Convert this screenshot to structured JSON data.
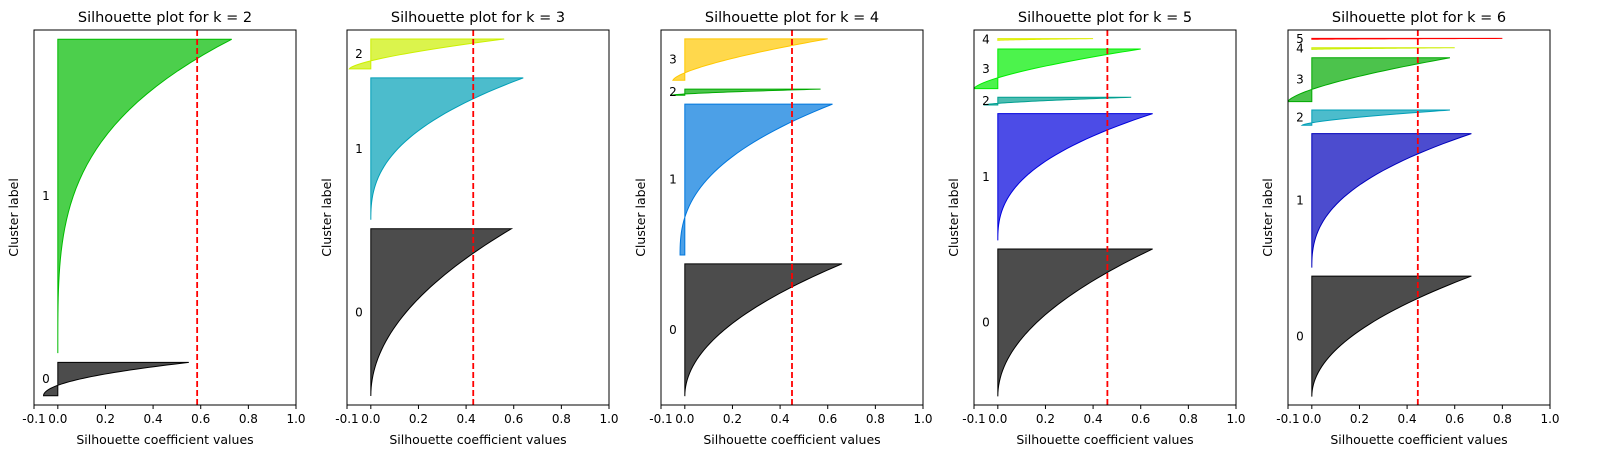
{
  "chart_data": [
    {
      "type": "silhouette",
      "title": "Silhouette plot for k = 2",
      "xlabel": "Silhouette coefficient values",
      "ylabel": "Cluster label",
      "xlim": [
        -0.1,
        1.0
      ],
      "xticks": [
        "-0.1",
        "0.0",
        "0.2",
        "0.4",
        "0.6",
        "0.8",
        "1.0"
      ],
      "mean_silhouette": 0.585,
      "clusters": [
        {
          "label": "0",
          "color": "#000000",
          "size": 36,
          "min": -0.06,
          "max": 0.55,
          "shape": 2.0
        },
        {
          "label": "1",
          "color": "#00bb00",
          "size": 339,
          "min": 0.0,
          "max": 0.73,
          "shape": 3.5
        }
      ]
    },
    {
      "type": "silhouette",
      "title": "Silhouette plot for k = 3",
      "xlabel": "Silhouette coefficient values",
      "ylabel": "Cluster label",
      "xlim": [
        -0.1,
        1.0
      ],
      "xticks": [
        "-0.1",
        "0.0",
        "0.2",
        "0.4",
        "0.6",
        "0.8",
        "1.0"
      ],
      "mean_silhouette": 0.43,
      "clusters": [
        {
          "label": "0",
          "color": "#000000",
          "size": 185,
          "min": 0.0,
          "max": 0.59,
          "shape": 2.0
        },
        {
          "label": "1",
          "color": "#009fb7",
          "size": 157,
          "min": 0.0,
          "max": 0.64,
          "shape": 2.5
        },
        {
          "label": "2",
          "color": "#ccf000",
          "size": 33,
          "min": -0.09,
          "max": 0.56,
          "shape": 1.5
        }
      ]
    },
    {
      "type": "silhouette",
      "title": "Silhouette plot for k = 4",
      "xlabel": "Silhouette coefficient values",
      "ylabel": "Cluster label",
      "xlim": [
        -0.1,
        1.0
      ],
      "xticks": [
        "-0.1",
        "0.0",
        "0.2",
        "0.4",
        "0.6",
        "0.8",
        "1.0"
      ],
      "mean_silhouette": 0.45,
      "clusters": [
        {
          "label": "0",
          "color": "#000000",
          "size": 150,
          "min": 0.0,
          "max": 0.66,
          "shape": 2.0
        },
        {
          "label": "1",
          "color": "#0077dd",
          "size": 171,
          "min": -0.02,
          "max": 0.62,
          "shape": 2.5
        },
        {
          "label": "2",
          "color": "#00aa00",
          "size": 7,
          "min": -0.06,
          "max": 0.57,
          "shape": 1.5
        },
        {
          "label": "3",
          "color": "#ffc800",
          "size": 47,
          "min": -0.05,
          "max": 0.6,
          "shape": 1.5
        }
      ]
    },
    {
      "type": "silhouette",
      "title": "Silhouette plot for k = 5",
      "xlabel": "Silhouette coefficient values",
      "ylabel": "Cluster label",
      "xlim": [
        -0.1,
        1.0
      ],
      "xticks": [
        "-0.1",
        "0.0",
        "0.2",
        "0.4",
        "0.6",
        "0.8",
        "1.0"
      ],
      "mean_silhouette": 0.46,
      "clusters": [
        {
          "label": "0",
          "color": "#000000",
          "size": 171,
          "min": 0.0,
          "max": 0.65,
          "shape": 2.0
        },
        {
          "label": "1",
          "color": "#0000dd",
          "size": 147,
          "min": 0.0,
          "max": 0.65,
          "shape": 2.5
        },
        {
          "label": "2",
          "color": "#009f90",
          "size": 9,
          "min": -0.06,
          "max": 0.56,
          "shape": 1.5
        },
        {
          "label": "3",
          "color": "#00ee00",
          "size": 46,
          "min": -0.1,
          "max": 0.6,
          "shape": 1.5
        },
        {
          "label": "4",
          "color": "#ddee00",
          "size": 2,
          "min": 0.0,
          "max": 0.4,
          "shape": 1.5
        }
      ]
    },
    {
      "type": "silhouette",
      "title": "Silhouette plot for k = 6",
      "xlabel": "Silhouette coefficient values",
      "ylabel": "Cluster label",
      "xlim": [
        -0.1,
        1.0
      ],
      "xticks": [
        "-0.1",
        "0.0",
        "0.2",
        "0.4",
        "0.6",
        "0.8",
        "1.0"
      ],
      "mean_silhouette": 0.445,
      "clusters": [
        {
          "label": "0",
          "color": "#000000",
          "size": 143,
          "min": 0.0,
          "max": 0.67,
          "shape": 2.0
        },
        {
          "label": "1",
          "color": "#0000bb",
          "size": 159,
          "min": 0.0,
          "max": 0.67,
          "shape": 2.5
        },
        {
          "label": "2",
          "color": "#009fb7",
          "size": 18,
          "min": -0.04,
          "max": 0.58,
          "shape": 1.5
        },
        {
          "label": "3",
          "color": "#00aa00",
          "size": 52,
          "min": -0.1,
          "max": 0.58,
          "shape": 1.5
        },
        {
          "label": "4",
          "color": "#ccee00",
          "size": 2,
          "min": 0.0,
          "max": 0.6,
          "shape": 1.5
        },
        {
          "label": "5",
          "color": "#ff0000",
          "size": 1,
          "min": 0.0,
          "max": 0.8,
          "shape": 1.5
        }
      ]
    }
  ]
}
